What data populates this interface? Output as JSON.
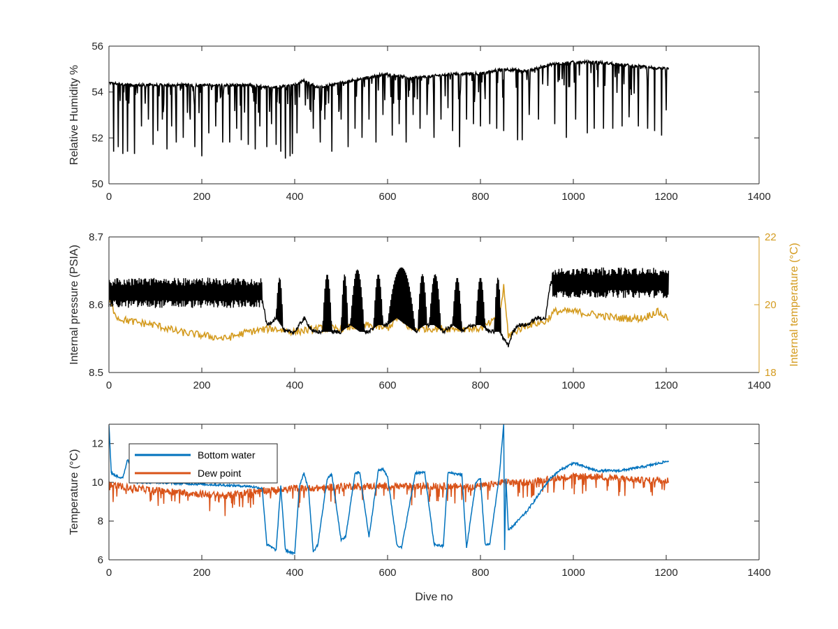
{
  "chart_data": [
    {
      "type": "line",
      "ylabel": "Relative Humidity %",
      "xlim": [
        0,
        1400
      ],
      "ylim": [
        50,
        56
      ],
      "x_ticks": [
        "0",
        "200",
        "400",
        "600",
        "800",
        "1000",
        "1200",
        "1400"
      ],
      "y_ticks": [
        "50",
        "52",
        "54",
        "56"
      ],
      "series": [
        {
          "color": "#000000",
          "x": [
            0,
            50,
            100,
            150,
            200,
            250,
            300,
            350,
            400,
            420,
            450,
            500,
            550,
            600,
            650,
            700,
            750,
            800,
            850,
            900,
            950,
            1000,
            1050,
            1100,
            1150,
            1205
          ],
          "y": [
            54.4,
            54.3,
            54.3,
            54.3,
            54.3,
            54.3,
            54.3,
            54.2,
            54.3,
            54.5,
            54.2,
            54.4,
            54.6,
            54.8,
            54.6,
            54.7,
            54.8,
            54.8,
            55.0,
            54.9,
            55.2,
            55.3,
            55.3,
            55.2,
            55.1,
            55.0
          ],
          "dips": [
            [
              10,
              51.4
            ],
            [
              20,
              51.6
            ],
            [
              30,
              51.3
            ],
            [
              40,
              51.4
            ],
            [
              55,
              51.3
            ],
            [
              70,
              52.5
            ],
            [
              85,
              52.8
            ],
            [
              95,
              51.7
            ],
            [
              105,
              52.3
            ],
            [
              115,
              52.8
            ],
            [
              125,
              51.5
            ],
            [
              135,
              52.5
            ],
            [
              145,
              51.8
            ],
            [
              160,
              52.0
            ],
            [
              175,
              52.8
            ],
            [
              185,
              51.6
            ],
            [
              200,
              51.2
            ],
            [
              215,
              52.2
            ],
            [
              230,
              52.5
            ],
            [
              245,
              51.8
            ],
            [
              260,
              51.8
            ],
            [
              275,
              52.4
            ],
            [
              285,
              51.9
            ],
            [
              300,
              51.7
            ],
            [
              315,
              51.5
            ],
            [
              325,
              52.5
            ],
            [
              340,
              51.6
            ],
            [
              350,
              52.6
            ],
            [
              360,
              51.7
            ],
            [
              370,
              51.4
            ],
            [
              380,
              51.1
            ],
            [
              390,
              51.2
            ],
            [
              395,
              51.3
            ],
            [
              405,
              52.2
            ],
            [
              440,
              52.4
            ],
            [
              455,
              51.8
            ],
            [
              465,
              52.8
            ],
            [
              480,
              51.4
            ],
            [
              500,
              52.8
            ],
            [
              515,
              51.6
            ],
            [
              530,
              52.4
            ],
            [
              545,
              52.0
            ],
            [
              560,
              52.8
            ],
            [
              575,
              51.8
            ],
            [
              590,
              53.0
            ],
            [
              610,
              52.1
            ],
            [
              625,
              52.6
            ],
            [
              640,
              51.8
            ],
            [
              655,
              53.0
            ],
            [
              670,
              52.4
            ],
            [
              685,
              53.0
            ],
            [
              700,
              52.0
            ],
            [
              715,
              52.8
            ],
            [
              730,
              53.3
            ],
            [
              740,
              52.3
            ],
            [
              755,
              51.6
            ],
            [
              770,
              52.8
            ],
            [
              785,
              52.6
            ],
            [
              800,
              52.5
            ],
            [
              820,
              52.6
            ],
            [
              835,
              52.4
            ],
            [
              850,
              52.3
            ],
            [
              880,
              51.9
            ],
            [
              890,
              51.9
            ],
            [
              905,
              53.0
            ],
            [
              925,
              52.8
            ],
            [
              960,
              52.6
            ],
            [
              985,
              52.0
            ],
            [
              1005,
              52.8
            ],
            [
              1030,
              52.2
            ],
            [
              1045,
              52.4
            ],
            [
              1065,
              52.4
            ],
            [
              1085,
              52.4
            ],
            [
              1105,
              52.5
            ],
            [
              1120,
              52.9
            ],
            [
              1140,
              52.5
            ],
            [
              1160,
              52.4
            ],
            [
              1175,
              52.3
            ],
            [
              1190,
              52.1
            ],
            [
              1200,
              53.2
            ]
          ]
        }
      ]
    },
    {
      "type": "line",
      "ylabel": "Internal pressure (PSIA)",
      "y2label": "Internal temperature (°C)",
      "xlim": [
        0,
        1400
      ],
      "ylim": [
        8.5,
        8.7
      ],
      "y2lim": [
        18,
        22
      ],
      "x_ticks": [
        "0",
        "200",
        "400",
        "600",
        "800",
        "1000",
        "1200",
        "1400"
      ],
      "y_ticks": [
        "8.5",
        "8.6",
        "8.7"
      ],
      "y2_ticks": [
        "18",
        "20",
        "22"
      ],
      "series": [
        {
          "axis": "left",
          "color": "#000000",
          "x": [
            0,
            30,
            60,
            100,
            150,
            200,
            250,
            300,
            330,
            340,
            360,
            380,
            400,
            420,
            440,
            450,
            480,
            500,
            520,
            540,
            560,
            580,
            600,
            620,
            640,
            660,
            680,
            700,
            720,
            740,
            760,
            780,
            800,
            820,
            840,
            850,
            860,
            870,
            880,
            900,
            920,
            940,
            950,
            960,
            1000,
            1050,
            1100,
            1150,
            1205
          ],
          "y": [
            8.62,
            8.61,
            8.61,
            8.61,
            8.61,
            8.61,
            8.61,
            8.61,
            8.61,
            8.57,
            8.58,
            8.56,
            8.56,
            8.58,
            8.56,
            8.56,
            8.56,
            8.56,
            8.57,
            8.56,
            8.56,
            8.57,
            8.57,
            8.58,
            8.57,
            8.56,
            8.57,
            8.57,
            8.56,
            8.57,
            8.56,
            8.57,
            8.57,
            8.56,
            8.56,
            8.55,
            8.54,
            8.56,
            8.57,
            8.57,
            8.58,
            8.58,
            8.63,
            8.64,
            8.64,
            8.63,
            8.63,
            8.62,
            8.61
          ],
          "band_low": 8.595,
          "band_high": 8.64,
          "bursts": [
            [
              360,
              375,
              8.64
            ],
            [
              460,
              480,
              8.645
            ],
            [
              500,
              515,
              8.645
            ],
            [
              520,
              550,
              8.652
            ],
            [
              570,
              590,
              8.645
            ],
            [
              600,
              660,
              8.655
            ],
            [
              665,
              685,
              8.645
            ],
            [
              690,
              715,
              8.645
            ],
            [
              740,
              760,
              8.64
            ],
            [
              790,
              810,
              8.64
            ],
            [
              830,
              845,
              8.64
            ]
          ]
        },
        {
          "axis": "right",
          "color": "#D49B1F",
          "x": [
            0,
            20,
            50,
            100,
            150,
            200,
            250,
            300,
            350,
            400,
            450,
            500,
            550,
            600,
            620,
            650,
            700,
            750,
            800,
            840,
            850,
            860,
            900,
            940,
            960,
            1000,
            1050,
            1100,
            1150,
            1180,
            1205
          ],
          "y": [
            20.1,
            19.6,
            19.5,
            19.4,
            19.2,
            19.1,
            19.0,
            19.2,
            19.3,
            19.2,
            19.3,
            19.3,
            19.4,
            19.3,
            19.6,
            19.3,
            19.3,
            19.3,
            19.3,
            19.6,
            20.5,
            19.1,
            19.4,
            19.5,
            19.8,
            19.8,
            19.7,
            19.6,
            19.6,
            19.8,
            19.6
          ]
        }
      ]
    },
    {
      "type": "line",
      "xlabel": "Dive no",
      "ylabel": "Temperature (°C)",
      "xlim": [
        0,
        1400
      ],
      "ylim": [
        6,
        13
      ],
      "x_ticks": [
        "0",
        "200",
        "400",
        "600",
        "800",
        "1000",
        "1200",
        "1400"
      ],
      "y_ticks": [
        "6",
        "8",
        "10",
        "12"
      ],
      "legend": "top-left",
      "series": [
        {
          "name": "Bottom water",
          "color": "#0072BD",
          "x": [
            0,
            5,
            10,
            30,
            40,
            60,
            100,
            200,
            300,
            330,
            340,
            360,
            370,
            380,
            400,
            410,
            420,
            430,
            440,
            450,
            470,
            480,
            500,
            510,
            530,
            540,
            560,
            580,
            590,
            600,
            620,
            630,
            660,
            680,
            700,
            720,
            730,
            760,
            770,
            790,
            800,
            810,
            820,
            840,
            850,
            852,
            855,
            860,
            880,
            900,
            950,
            970,
            1000,
            1050,
            1100,
            1150,
            1205
          ],
          "y": [
            13.0,
            10.5,
            10.4,
            10.2,
            11.2,
            10.0,
            10.0,
            9.9,
            9.8,
            9.7,
            6.8,
            6.5,
            9.8,
            6.5,
            6.3,
            9.8,
            10.5,
            9.6,
            6.4,
            6.8,
            10.2,
            10.4,
            7.0,
            7.2,
            10.5,
            10.5,
            7.2,
            10.6,
            10.7,
            10.3,
            6.8,
            6.6,
            10.5,
            10.5,
            6.8,
            6.7,
            10.5,
            10.4,
            6.6,
            10.0,
            10.2,
            6.8,
            6.8,
            10.2,
            13.0,
            6.5,
            10.2,
            7.5,
            8.0,
            8.5,
            10.2,
            10.6,
            11.0,
            10.6,
            10.6,
            10.8,
            11.1
          ]
        },
        {
          "name": "Dew point",
          "color": "#D95319",
          "x": [
            0,
            50,
            100,
            150,
            200,
            250,
            300,
            350,
            400,
            450,
            500,
            550,
            600,
            650,
            700,
            750,
            800,
            850,
            900,
            950,
            1000,
            1050,
            1100,
            1150,
            1205
          ],
          "y": [
            9.9,
            9.7,
            9.6,
            9.5,
            9.4,
            9.3,
            9.5,
            9.6,
            9.7,
            9.7,
            9.8,
            9.8,
            9.8,
            9.8,
            9.8,
            9.8,
            9.8,
            10.0,
            10.0,
            10.2,
            10.3,
            10.3,
            10.2,
            10.1,
            10.1
          ]
        }
      ]
    }
  ]
}
